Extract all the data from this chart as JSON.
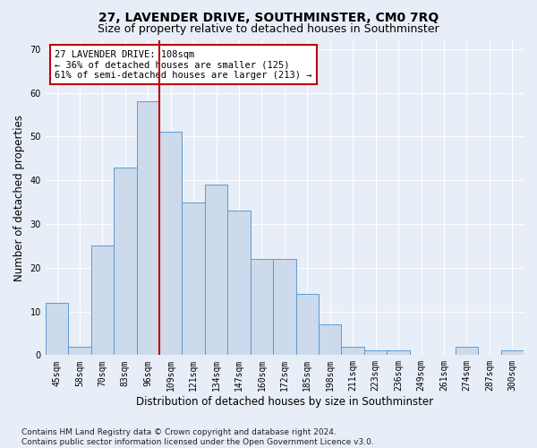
{
  "title": "27, LAVENDER DRIVE, SOUTHMINSTER, CM0 7RQ",
  "subtitle": "Size of property relative to detached houses in Southminster",
  "xlabel": "Distribution of detached houses by size in Southminster",
  "ylabel": "Number of detached properties",
  "categories": [
    "45sqm",
    "58sqm",
    "70sqm",
    "83sqm",
    "96sqm",
    "109sqm",
    "121sqm",
    "134sqm",
    "147sqm",
    "160sqm",
    "172sqm",
    "185sqm",
    "198sqm",
    "211sqm",
    "223sqm",
    "236sqm",
    "249sqm",
    "261sqm",
    "274sqm",
    "287sqm",
    "300sqm"
  ],
  "values": [
    12,
    2,
    25,
    43,
    58,
    51,
    35,
    39,
    33,
    22,
    22,
    14,
    7,
    2,
    1,
    1,
    0,
    0,
    2,
    0,
    1
  ],
  "bar_color": "#ccdaeb",
  "bar_edge_color": "#5b9bd5",
  "vline_x_index": 5,
  "vline_color": "#c00000",
  "annotation_text": "27 LAVENDER DRIVE: 108sqm\n← 36% of detached houses are smaller (125)\n61% of semi-detached houses are larger (213) →",
  "annotation_box_color": "white",
  "annotation_box_edge": "#c00000",
  "ylim": [
    0,
    72
  ],
  "yticks": [
    0,
    10,
    20,
    30,
    40,
    50,
    60,
    70
  ],
  "footnote": "Contains HM Land Registry data © Crown copyright and database right 2024.\nContains public sector information licensed under the Open Government Licence v3.0.",
  "background_color": "#e8eef7",
  "plot_background": "#e8eef7",
  "grid_color": "#ffffff",
  "title_fontsize": 10,
  "subtitle_fontsize": 9,
  "axis_label_fontsize": 8.5,
  "tick_fontsize": 7,
  "footnote_fontsize": 6.5,
  "annotation_fontsize": 7.5
}
